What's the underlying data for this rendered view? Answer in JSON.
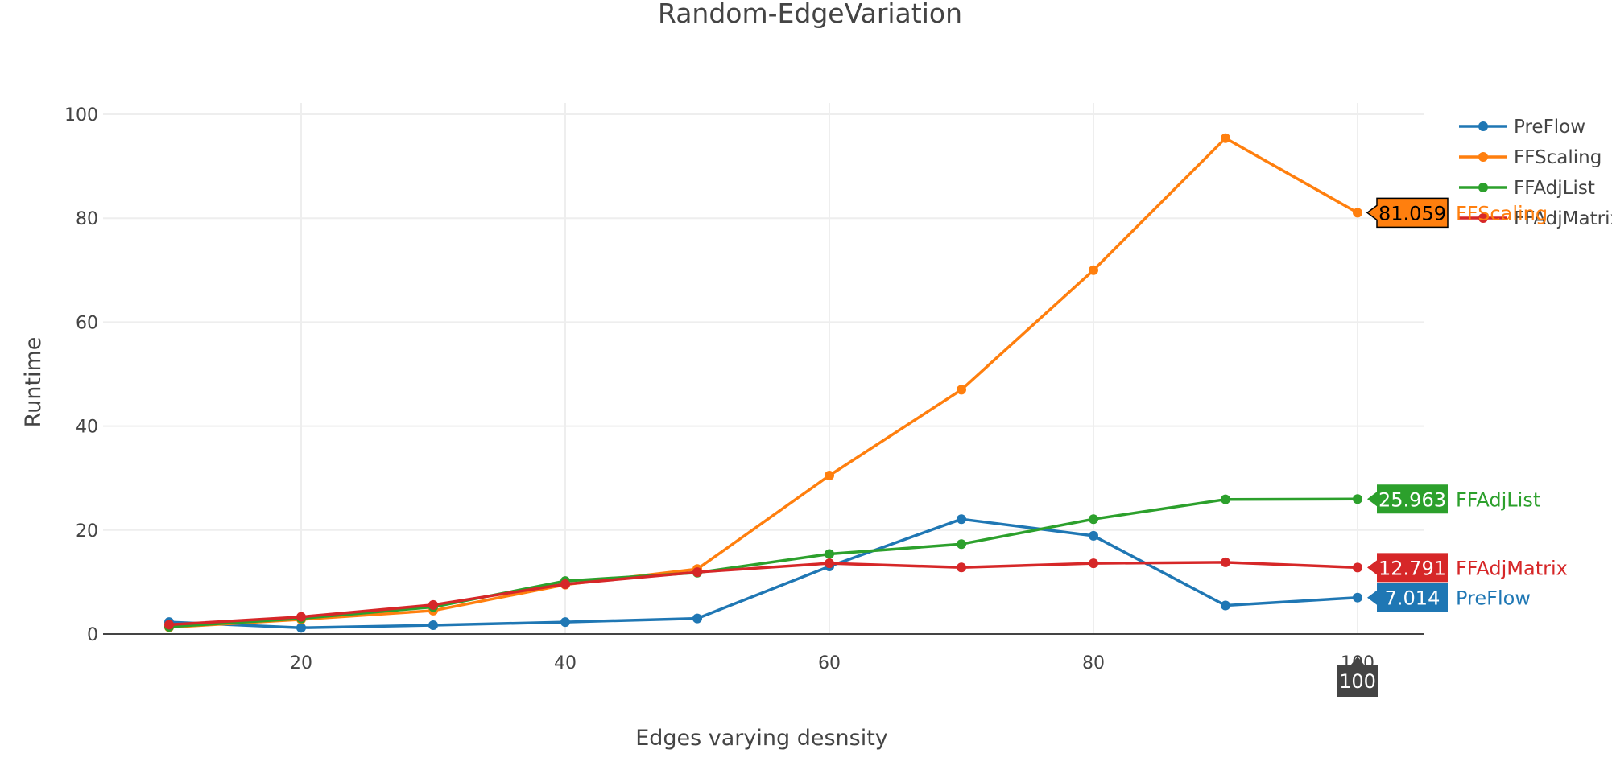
{
  "chart_data": {
    "type": "line",
    "title": "Random-EdgeVariation",
    "xlabel": "Edges varying desnsity",
    "ylabel": "Runtime",
    "xlim": [
      5,
      105
    ],
    "ylim": [
      0,
      100
    ],
    "x": [
      10,
      20,
      30,
      40,
      50,
      60,
      70,
      80,
      90,
      100
    ],
    "xticks": [
      20,
      40,
      60,
      80,
      100
    ],
    "yticks": [
      0,
      20,
      40,
      60,
      80,
      100
    ],
    "grid": true,
    "legend_position": "top-right",
    "series": [
      {
        "name": "PreFlow",
        "color": "#1f77b4",
        "values": [
          2.3,
          1.2,
          1.7,
          2.3,
          3.0,
          13.0,
          22.1,
          18.9,
          5.5,
          7.014
        ]
      },
      {
        "name": "FFScaling",
        "color": "#ff7f0e",
        "values": [
          1.3,
          2.8,
          4.5,
          9.5,
          12.5,
          30.5,
          47.0,
          70.0,
          95.4,
          81.059
        ]
      },
      {
        "name": "FFAdjList",
        "color": "#2ca02c",
        "values": [
          1.4,
          3.0,
          5.2,
          10.2,
          11.8,
          15.4,
          17.3,
          22.1,
          25.9,
          25.963
        ]
      },
      {
        "name": "FFAdjMatrix",
        "color": "#d62728",
        "values": [
          1.8,
          3.3,
          5.6,
          9.6,
          11.9,
          13.6,
          12.8,
          13.6,
          13.8,
          12.791
        ]
      }
    ],
    "hover": {
      "x_label": "100",
      "labels": [
        {
          "series": "FFScaling",
          "value": "81.059",
          "bg": "#ff7f0e",
          "text_color": "#000000"
        },
        {
          "series": "FFAdjList",
          "value": "25.963",
          "bg": "#2ca02c",
          "text_color": "#ffffff"
        },
        {
          "series": "FFAdjMatrix",
          "value": "12.791",
          "bg": "#d62728",
          "text_color": "#ffffff"
        },
        {
          "series": "PreFlow",
          "value": "7.014",
          "bg": "#1f77b4",
          "text_color": "#ffffff"
        }
      ]
    }
  }
}
